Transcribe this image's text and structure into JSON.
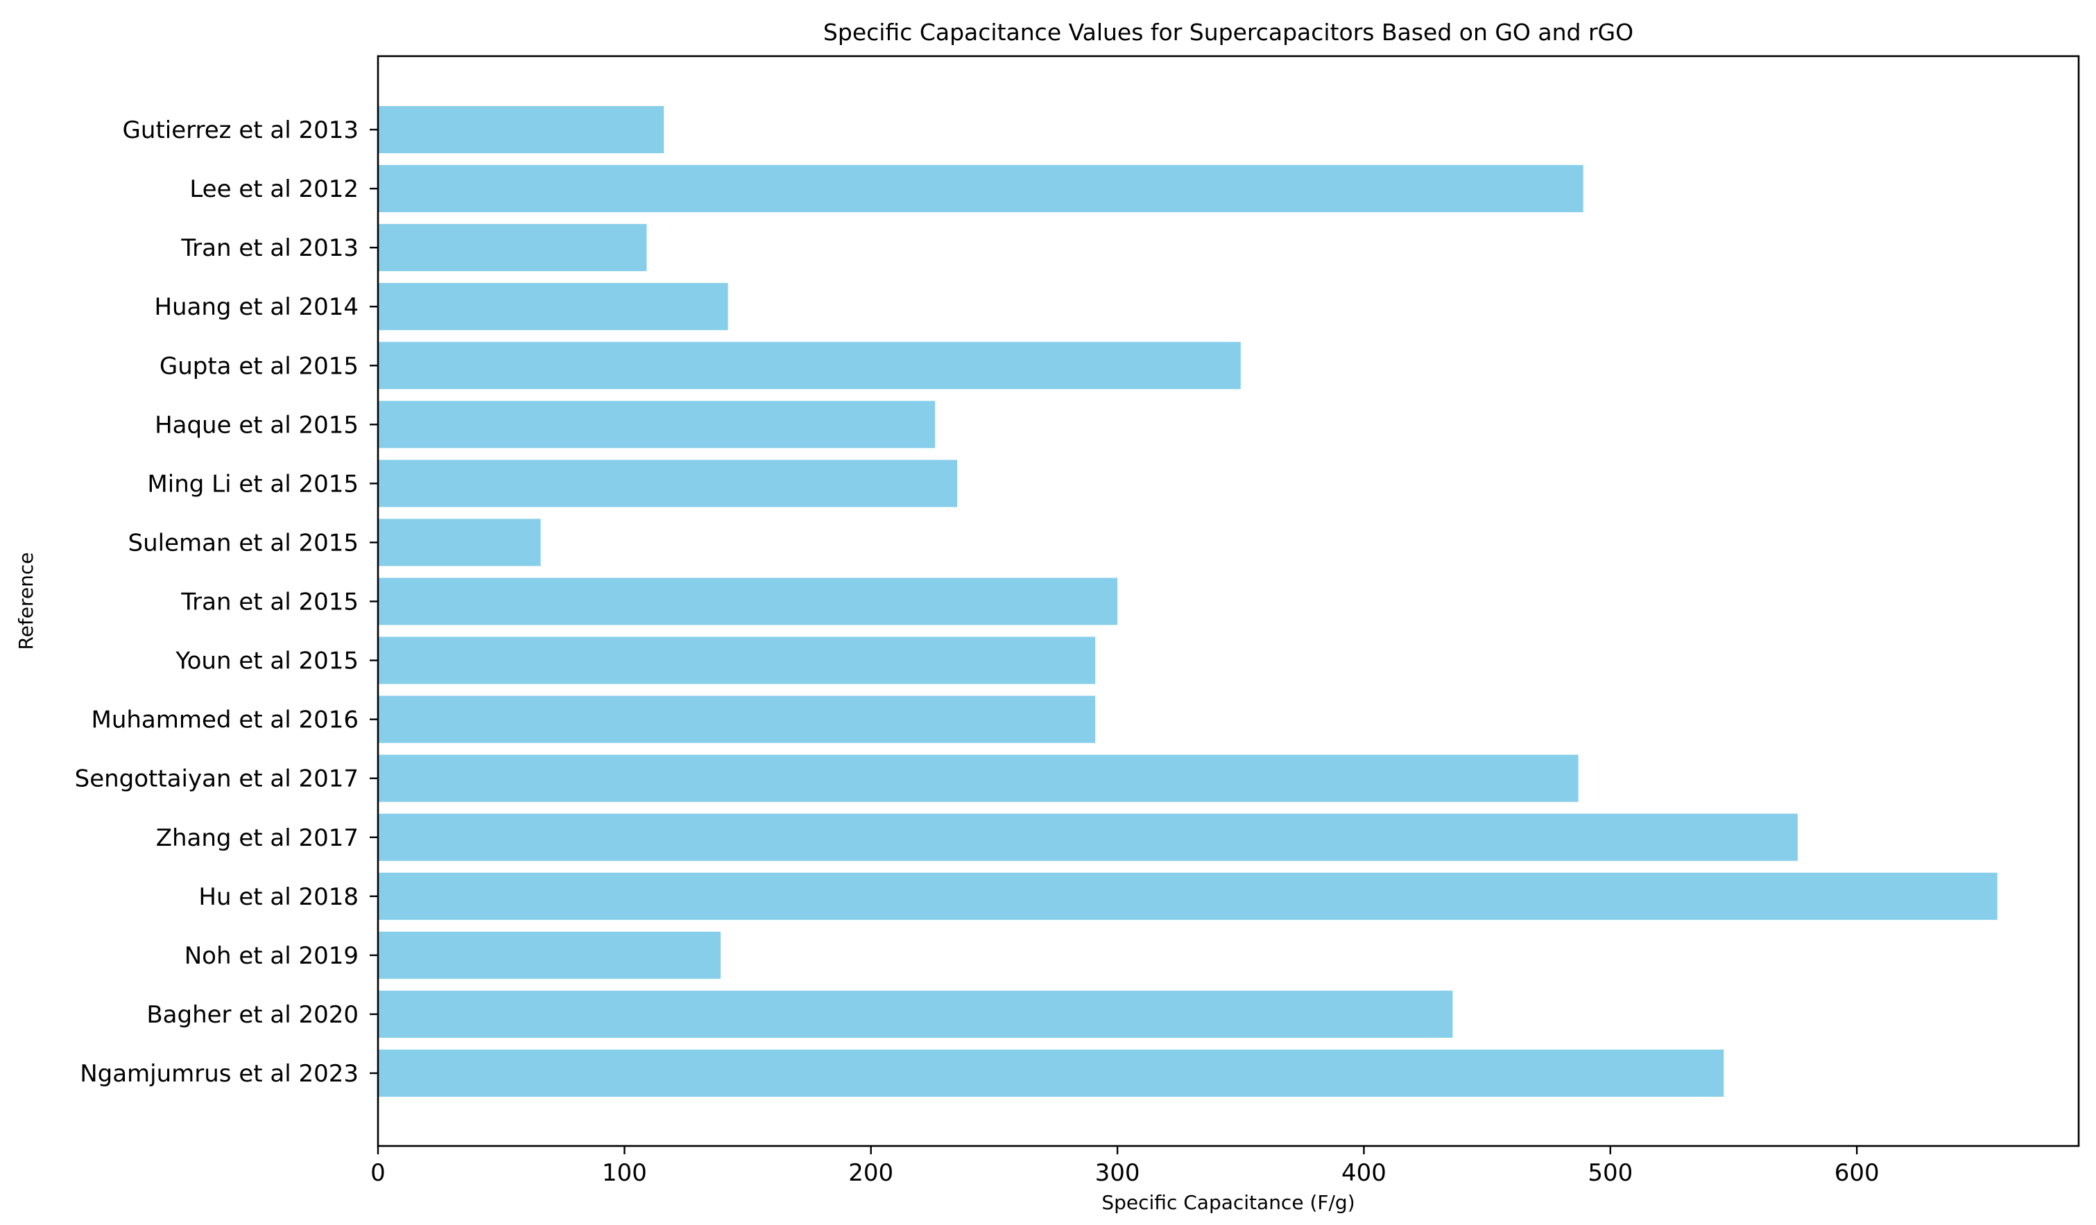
{
  "chart_data": {
    "type": "bar",
    "orientation": "horizontal",
    "title": "Specific Capacitance Values for Supercapacitors Based on GO and rGO",
    "xlabel": "Specific Capacitance (F/g)",
    "ylabel": "Reference",
    "xlim": [
      0,
      690
    ],
    "xticks": [
      0,
      100,
      200,
      300,
      400,
      500,
      600
    ],
    "grid": false,
    "legend": false,
    "bar_color": "#87CEEB",
    "categories": [
      "Gutierrez et al 2013",
      "Lee et al 2012",
      "Tran et al 2013",
      "Huang et al 2014",
      "Gupta et al 2015",
      "Haque et al 2015",
      "Ming Li et al 2015",
      "Suleman et al 2015",
      "Tran et al 2015",
      "Youn et al 2015",
      "Muhammed et al 2016",
      "Sengottaiyan et al 2017",
      "Zhang et al 2017",
      "Hu et al 2018",
      "Noh et al 2019",
      "Bagher et al 2020",
      "Ngamjumrus et al 2023"
    ],
    "values": [
      116,
      489,
      109,
      142,
      350,
      226,
      235,
      66,
      300,
      291,
      291,
      487,
      576,
      657,
      139,
      436,
      546
    ]
  }
}
